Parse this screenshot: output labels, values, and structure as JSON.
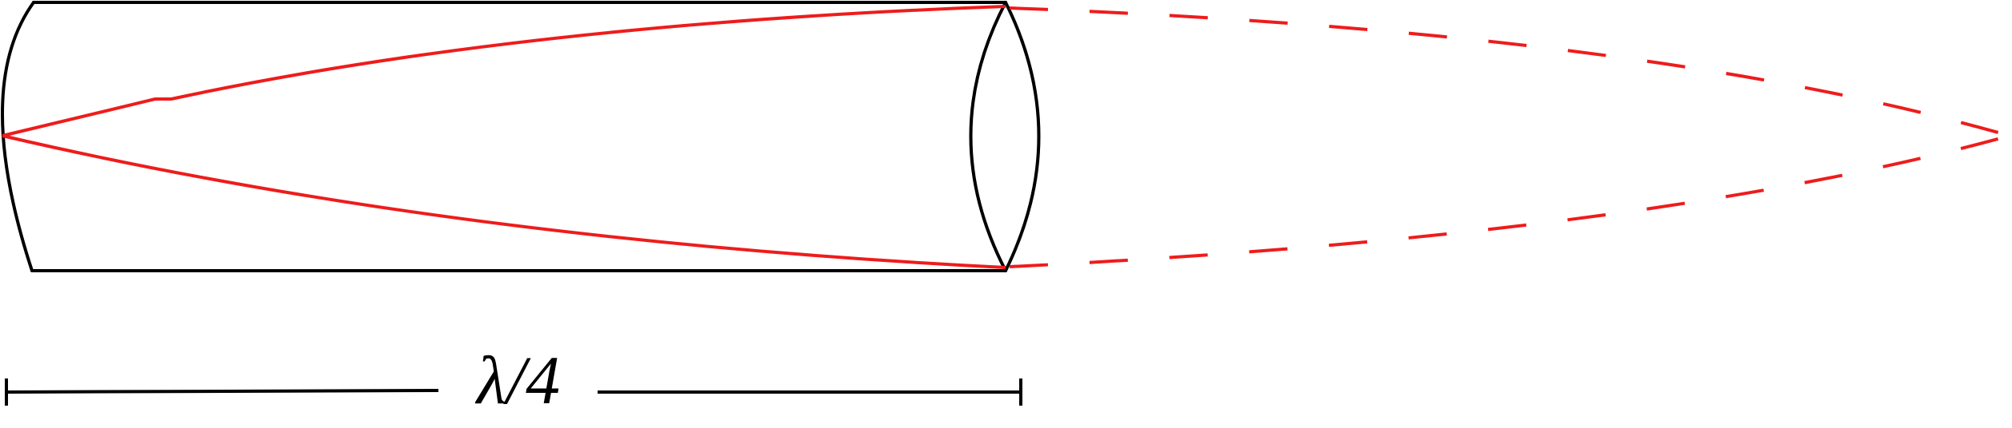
{
  "colors": {
    "outline": "#000000",
    "ray": "#ee1c1c"
  },
  "dimension": {
    "label": "λ/4"
  }
}
